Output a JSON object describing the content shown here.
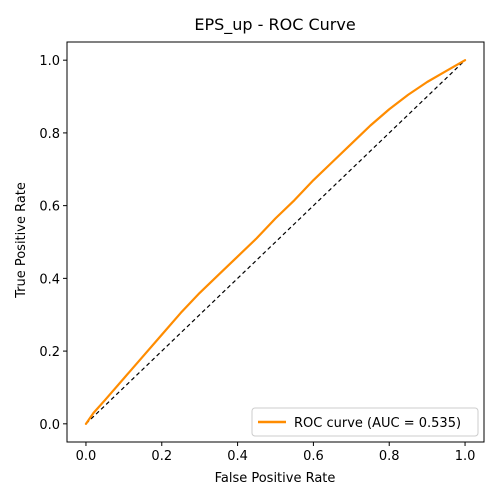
{
  "chart_data": {
    "type": "line",
    "title": "EPS_up - ROC Curve",
    "xlabel": "False Positive Rate",
    "ylabel": "True Positive Rate",
    "xlim": [
      -0.05,
      1.05
    ],
    "ylim": [
      -0.05,
      1.05
    ],
    "xticks": [
      "0.0",
      "0.2",
      "0.4",
      "0.6",
      "0.8",
      "1.0"
    ],
    "yticks": [
      "0.0",
      "0.2",
      "0.4",
      "0.6",
      "0.8",
      "1.0"
    ],
    "grid": false,
    "legend_position": "lower-right",
    "series": [
      {
        "name": "ROC curve (AUC = 0.535)",
        "color": "#ff8c00",
        "x": [
          0.0,
          0.02,
          0.05,
          0.1,
          0.15,
          0.2,
          0.25,
          0.3,
          0.35,
          0.4,
          0.45,
          0.5,
          0.55,
          0.6,
          0.65,
          0.7,
          0.75,
          0.8,
          0.85,
          0.9,
          0.95,
          1.0
        ],
        "y": [
          0.0,
          0.03,
          0.065,
          0.125,
          0.185,
          0.245,
          0.305,
          0.36,
          0.41,
          0.46,
          0.51,
          0.565,
          0.615,
          0.67,
          0.72,
          0.77,
          0.82,
          0.865,
          0.905,
          0.94,
          0.97,
          1.0
        ]
      }
    ],
    "reference_line": {
      "x": [
        0,
        1
      ],
      "y": [
        0,
        1
      ],
      "color": "#000000",
      "style": "dashed"
    }
  }
}
